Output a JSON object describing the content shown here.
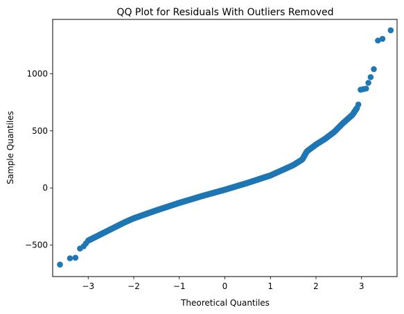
{
  "chart_data": {
    "type": "scatter",
    "title": "QQ Plot for Residuals With Outliers Removed",
    "xlabel": "Theoretical Quantiles",
    "ylabel": "Sample Quantiles",
    "xlim": [
      -3.78,
      3.78
    ],
    "ylim": [
      -775,
      1475
    ],
    "xticks": [
      -3,
      -2,
      -1,
      0,
      1,
      2,
      3
    ],
    "xtick_labels": [
      "−3",
      "−2",
      "−1",
      "0",
      "1",
      "2",
      "3"
    ],
    "yticks": [
      -500,
      0,
      500,
      1000
    ],
    "ytick_labels": [
      "−500",
      "0",
      "500",
      "1000"
    ],
    "grid": false,
    "marker_color": "#1f77b4",
    "tail_points": {
      "x": [
        -3.62,
        -3.4,
        -3.28,
        -3.18,
        -3.1,
        -3.05,
        2.93,
        2.98,
        3.04,
        3.1,
        3.15,
        3.2,
        3.27,
        3.36,
        3.46,
        3.64
      ],
      "y": [
        -670,
        -615,
        -610,
        -530,
        -510,
        -485,
        730,
        860,
        865,
        870,
        920,
        970,
        1040,
        1290,
        1305,
        1380
      ]
    },
    "curve": {
      "x": [
        -3.0,
        -2.8,
        -2.5,
        -2.2,
        -2.0,
        -1.5,
        -1.0,
        -0.5,
        0.0,
        0.5,
        1.0,
        1.5,
        1.7,
        1.8,
        2.0,
        2.2,
        2.4,
        2.6,
        2.8,
        2.9
      ],
      "y": [
        -460,
        -420,
        -360,
        -300,
        -265,
        -195,
        -130,
        -70,
        -15,
        45,
        110,
        200,
        250,
        320,
        380,
        430,
        490,
        570,
        640,
        700
      ]
    },
    "x_range": [
      -3.0,
      2.9
    ],
    "n_curve_points": 1400
  }
}
